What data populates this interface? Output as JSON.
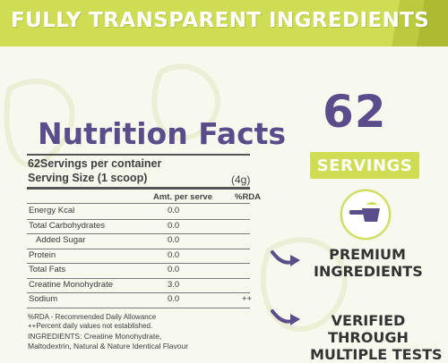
{
  "banner": {
    "title": "FULLY TRANSPARENT INGREDIENTS"
  },
  "nutrition": {
    "title": "Nutrition Facts",
    "servings_line": "62Servings per container",
    "serving_size_label": "Serving Size (1 scoop)",
    "serving_size_value": "(4g)",
    "col_amount": "Amt. per serve",
    "col_rda": "%RDA",
    "rows": [
      {
        "label": "Energy Kcal",
        "value": "0.0",
        "rda": ""
      },
      {
        "label": "Total Carbohydrates",
        "value": "0.0",
        "rda": ""
      },
      {
        "label": "Added Sugar",
        "value": "0.0",
        "rda": ""
      },
      {
        "label": "Protein",
        "value": "0.0",
        "rda": ""
      },
      {
        "label": "Total Fats",
        "value": "0.0",
        "rda": ""
      },
      {
        "label": "Creatine Monohydrate",
        "value": "3.0",
        "rda": ""
      },
      {
        "label": "Sodium",
        "value": "0.0",
        "rda": "++"
      }
    ],
    "notes": {
      "rda_note": "%RDA - Recommended Daily Allowance",
      "daily_note": "++Percent daily values not established.",
      "ingredients_1": "INGREDIENTS: Creatine Monohydrate,",
      "ingredients_2": "Maltodextrin, Natural & Nature Identical Flavour"
    }
  },
  "servings": {
    "number": "62",
    "label": "SERVINGS"
  },
  "features": [
    {
      "line1": "PREMIUM",
      "line2": "INGREDIENTS",
      "line3": ""
    },
    {
      "line1": "VERIFIED",
      "line2": "THROUGH",
      "line3": "MULTIPLE TESTS"
    }
  ],
  "colors": {
    "accent": "#cfdd55",
    "purple": "#5b4d8c",
    "background": "#f7f8ee"
  },
  "icons": {
    "scoop": "scoop-icon",
    "arrow": "arrow-icon"
  }
}
